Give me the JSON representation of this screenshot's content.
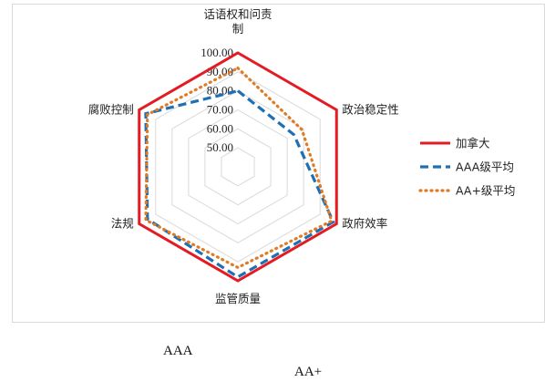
{
  "chart_data": {
    "type": "radar",
    "axes": [
      [
        "话语权和问责",
        "制"
      ],
      [
        "政治稳定性"
      ],
      [
        "政府效率"
      ],
      [
        "监管质量"
      ],
      [
        "法规"
      ],
      [
        "腐败控制"
      ]
    ],
    "ticks": [
      "50.00",
      "60.00",
      "70.00",
      "80.00",
      "90.00",
      "100.00"
    ],
    "range": [
      40,
      100
    ],
    "grid": true,
    "legend_position": "right",
    "series": [
      {
        "name": "加拿大",
        "color": "#e31b23",
        "style": "solid",
        "values": [
          100,
          100,
          100,
          100,
          100,
          100
        ]
      },
      {
        "name": "AAA级平均",
        "color": "#1f6fb4",
        "style": "dashed",
        "values": [
          80,
          74,
          98,
          98,
          95,
          96
        ]
      },
      {
        "name": "AA+级平均",
        "color": "#e07b25",
        "style": "dotted",
        "values": [
          92,
          79,
          97,
          93,
          96,
          95
        ]
      }
    ]
  },
  "footnotes": [
    "AAA",
    "AA+"
  ]
}
